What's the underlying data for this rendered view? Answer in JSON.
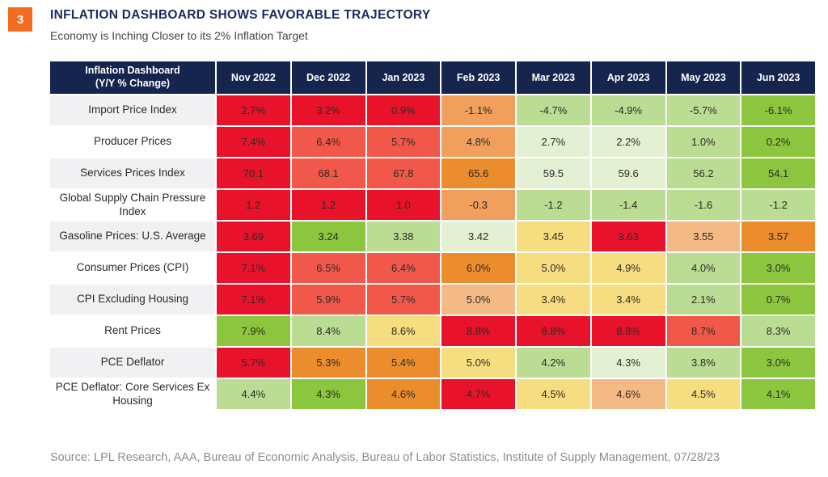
{
  "page": {
    "badge": "3",
    "title": "INFLATION DASHBOARD SHOWS FAVORABLE TRAJECTORY",
    "subtitle": "Economy is Inching Closer to its 2% Inflation Target"
  },
  "colors": {
    "accent_orange": "#F26D21",
    "title_navy": "#1B2A5E",
    "header_navy": "#16254E",
    "label_grey": "#F1F1F3",
    "label_white": "#FFFFFF",
    "red": "#E8132B",
    "red2": "#F2584A",
    "orange": "#EB8D2D",
    "orange2": "#F0A05C",
    "peach": "#F4BA85",
    "yellow": "#F6DD7F",
    "green3": "#E4F0D3",
    "green2": "#BADC93",
    "green1": "#8CC63F"
  },
  "chart_data": {
    "type": "heatmap",
    "title": "Inflation Dashboard (Y/Y % Change)",
    "corner_label": "Inflation Dashboard\n(Y/Y % Change)",
    "columns": [
      "Nov 2022",
      "Dec 2022",
      "Jan 2023",
      "Feb 2023",
      "Mar 2023",
      "Apr 2023",
      "May 2023",
      "Jun 2023"
    ],
    "rows": [
      {
        "label": "Import Price Index",
        "values": [
          "2.7%",
          "3.2%",
          "0.9%",
          "-1.1%",
          "-4.7%",
          "-4.9%",
          "-5.7%",
          "-6.1%"
        ],
        "colors": [
          "red",
          "red",
          "red",
          "orange2",
          "green2",
          "green2",
          "green2",
          "green1"
        ]
      },
      {
        "label": "Producer Prices",
        "values": [
          "7.4%",
          "6.4%",
          "5.7%",
          "4.8%",
          "2.7%",
          "2.2%",
          "1.0%",
          "0.2%"
        ],
        "colors": [
          "red",
          "red2",
          "red2",
          "orange2",
          "green3",
          "green3",
          "green2",
          "green1"
        ]
      },
      {
        "label": "Services Prices Index",
        "values": [
          "70.1",
          "68.1",
          "67.8",
          "65.6",
          "59.5",
          "59.6",
          "56.2",
          "54.1"
        ],
        "colors": [
          "red",
          "red2",
          "red2",
          "orange",
          "green3",
          "green3",
          "green2",
          "green1"
        ]
      },
      {
        "label": "Global Supply Chain Pressure Index",
        "values": [
          "1.2",
          "1.2",
          "1.0",
          "-0.3",
          "-1.2",
          "-1.4",
          "-1.6",
          "-1.2"
        ],
        "colors": [
          "red",
          "red",
          "red",
          "orange2",
          "green2",
          "green2",
          "green2",
          "green2"
        ]
      },
      {
        "label": "Gasoline Prices: U.S. Average",
        "values": [
          "3.69",
          "3.24",
          "3.38",
          "3.42",
          "3.45",
          "3.63",
          "3.55",
          "3.57"
        ],
        "colors": [
          "red",
          "green1",
          "green2",
          "green3",
          "yellow",
          "red",
          "peach",
          "orange"
        ]
      },
      {
        "label": "Consumer Prices  (CPI)",
        "values": [
          "7.1%",
          "6.5%",
          "6.4%",
          "6.0%",
          "5.0%",
          "4.9%",
          "4.0%",
          "3.0%"
        ],
        "colors": [
          "red",
          "red2",
          "red2",
          "orange",
          "yellow",
          "yellow",
          "green2",
          "green1"
        ]
      },
      {
        "label": "CPI Excluding Housing",
        "values": [
          "7.1%",
          "5.9%",
          "5.7%",
          "5.0%",
          "3.4%",
          "3.4%",
          "2.1%",
          "0.7%"
        ],
        "colors": [
          "red",
          "red2",
          "red2",
          "peach",
          "yellow",
          "yellow",
          "green2",
          "green1"
        ]
      },
      {
        "label": "Rent Prices",
        "values": [
          "7.9%",
          "8.4%",
          "8.6%",
          "8.8%",
          "8.8%",
          "8.8%",
          "8.7%",
          "8.3%"
        ],
        "colors": [
          "green1",
          "green2",
          "yellow",
          "red",
          "red",
          "red",
          "red2",
          "green2"
        ]
      },
      {
        "label": "PCE Deflator",
        "values": [
          "5.7%",
          "5.3%",
          "5.4%",
          "5.0%",
          "4.2%",
          "4.3%",
          "3.8%",
          "3.0%"
        ],
        "colors": [
          "red",
          "orange",
          "orange",
          "yellow",
          "green2",
          "green3",
          "green2",
          "green1"
        ]
      },
      {
        "label": "PCE Deflator: Core Services Ex Housing",
        "values": [
          "4.4%",
          "4.3%",
          "4.6%",
          "4.7%",
          "4.5%",
          "4.6%",
          "4.5%",
          "4.1%"
        ],
        "colors": [
          "green2",
          "green1",
          "orange",
          "red",
          "yellow",
          "peach",
          "yellow",
          "green1"
        ]
      }
    ]
  },
  "footer": {
    "source": "Source: LPL Research, AAA, Bureau of Economic Analysis, Bureau of Labor Statistics, Institute of Supply Management,  07/28/23"
  }
}
